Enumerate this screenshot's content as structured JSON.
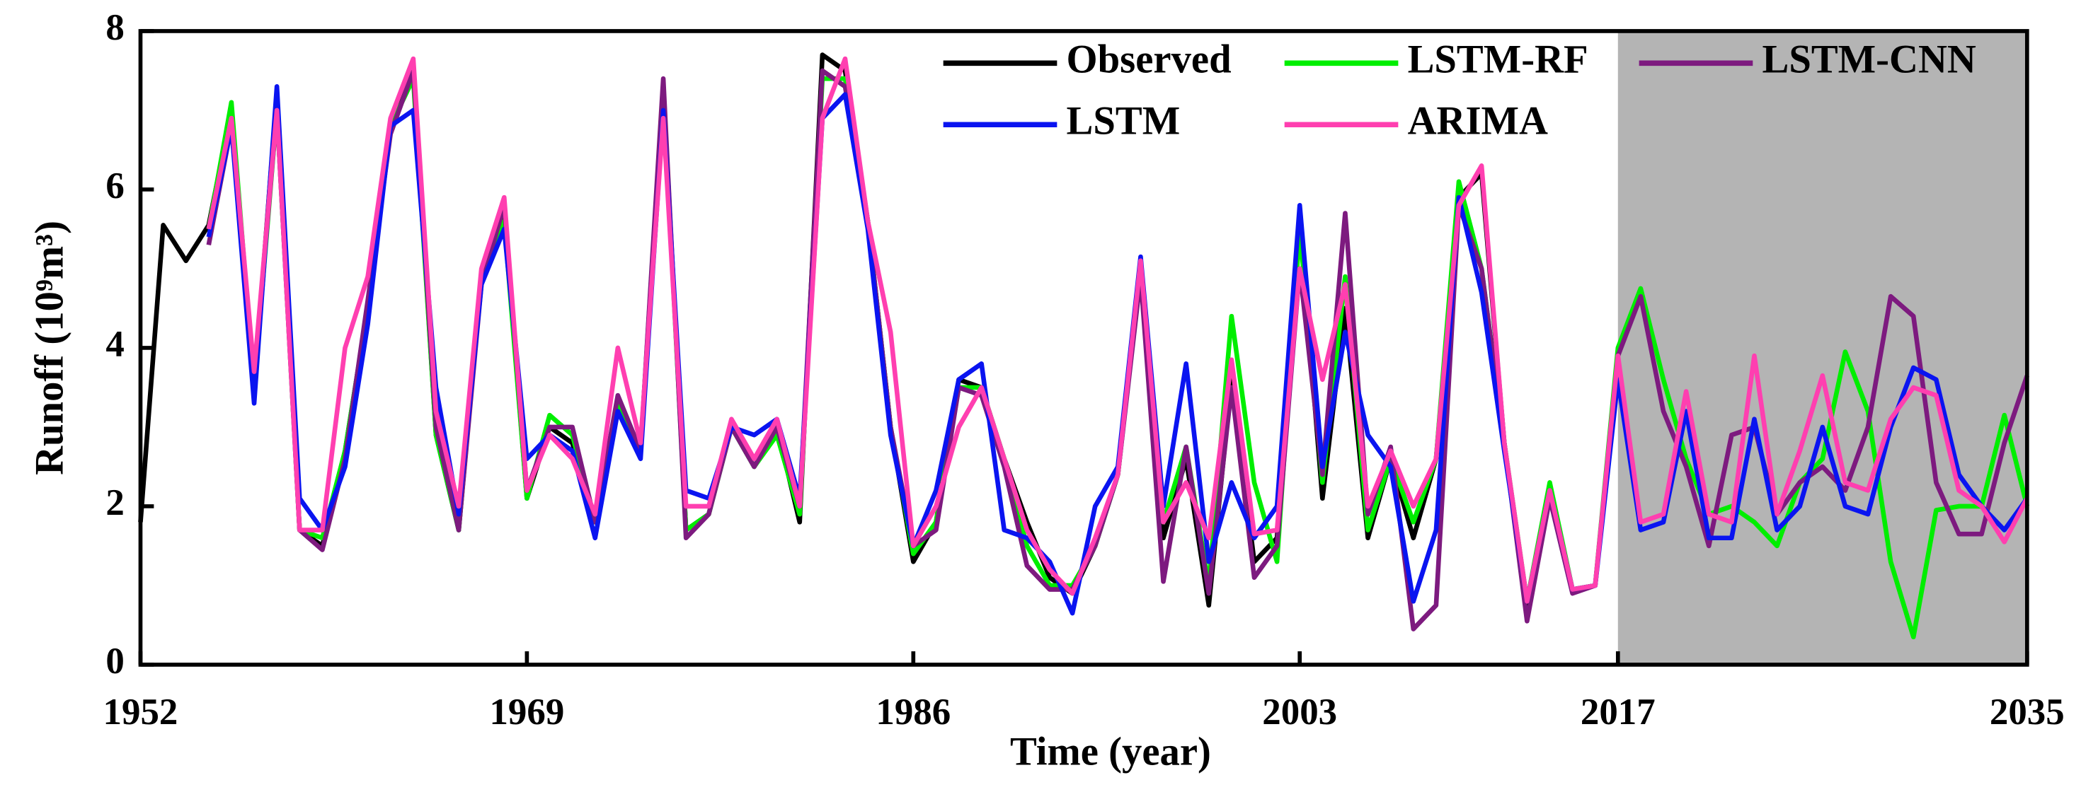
{
  "chart_data": {
    "type": "line",
    "xlabel": "Time (year)",
    "ylabel": "Runoff (10⁹m³)",
    "x": [
      1952,
      1953,
      1954,
      1955,
      1956,
      1957,
      1958,
      1959,
      1960,
      1961,
      1962,
      1963,
      1964,
      1965,
      1966,
      1967,
      1968,
      1969,
      1970,
      1971,
      1972,
      1973,
      1974,
      1975,
      1976,
      1977,
      1978,
      1979,
      1980,
      1981,
      1982,
      1983,
      1984,
      1985,
      1986,
      1987,
      1988,
      1989,
      1990,
      1991,
      1992,
      1993,
      1994,
      1995,
      1996,
      1997,
      1998,
      1999,
      2000,
      2001,
      2002,
      2003,
      2004,
      2005,
      2006,
      2007,
      2008,
      2009,
      2010,
      2011,
      2012,
      2013,
      2014,
      2015,
      2016,
      2017,
      2018,
      2019,
      2020,
      2021,
      2022,
      2023,
      2024,
      2025,
      2026,
      2027,
      2028,
      2029,
      2030,
      2031,
      2032,
      2033,
      2034,
      2035
    ],
    "series": [
      {
        "name": "Observed",
        "color": "#000000",
        "values": [
          1.8,
          5.55,
          5.1,
          5.55,
          7.0,
          3.5,
          7.2,
          1.7,
          1.5,
          2.7,
          4.5,
          6.8,
          7.5,
          2.9,
          1.7,
          4.9,
          5.7,
          2.1,
          3.0,
          2.8,
          1.8,
          3.3,
          2.7,
          7.3,
          1.7,
          1.9,
          3.0,
          2.5,
          3.0,
          1.8,
          7.7,
          7.5,
          5.6,
          3.0,
          1.3,
          1.8,
          3.6,
          3.5,
          2.6,
          1.8,
          1.1,
          0.9,
          1.5,
          2.4,
          5.0,
          1.6,
          2.6,
          0.75,
          3.6,
          1.3,
          1.6,
          5.6,
          2.1,
          4.5,
          1.6,
          2.6,
          1.6,
          2.6,
          5.9,
          6.2,
          2.8,
          0.7,
          2.2,
          0.95,
          1.0,
          null,
          null,
          null,
          null,
          null,
          null,
          null,
          null,
          null,
          null,
          null,
          null,
          null,
          null,
          null,
          null,
          null,
          null,
          null
        ]
      },
      {
        "name": "LSTM-RF",
        "color": "#00ee00",
        "values": [
          null,
          null,
          null,
          5.5,
          7.1,
          3.5,
          7.0,
          1.7,
          1.6,
          2.7,
          4.5,
          6.8,
          7.4,
          2.9,
          1.7,
          4.9,
          5.6,
          2.1,
          3.15,
          2.9,
          1.8,
          3.3,
          2.7,
          7.2,
          1.7,
          1.9,
          3.0,
          2.5,
          2.9,
          1.9,
          7.4,
          7.4,
          5.6,
          3.0,
          1.4,
          1.8,
          3.5,
          3.5,
          2.6,
          1.5,
          1.0,
          1.0,
          1.5,
          2.4,
          5.0,
          1.8,
          2.75,
          1.0,
          4.4,
          2.3,
          1.3,
          5.5,
          2.3,
          4.9,
          1.7,
          2.6,
          1.8,
          2.6,
          6.1,
          5.0,
          2.8,
          0.8,
          2.3,
          0.95,
          1.0,
          4.0,
          4.75,
          3.6,
          2.6,
          1.9,
          2.0,
          1.8,
          1.5,
          2.3,
          2.6,
          3.95,
          3.2,
          1.3,
          0.35,
          1.95,
          2.0,
          2.0,
          3.15,
          2.0
        ]
      },
      {
        "name": "LSTM-CNN",
        "color": "#7d1a7f",
        "values": [
          null,
          null,
          null,
          5.3,
          6.8,
          3.6,
          7.0,
          1.7,
          1.45,
          2.6,
          4.6,
          6.7,
          7.5,
          3.0,
          1.7,
          4.8,
          5.8,
          2.2,
          3.0,
          3.0,
          1.8,
          3.4,
          2.7,
          7.4,
          1.6,
          1.9,
          3.0,
          2.5,
          3.0,
          2.0,
          7.5,
          7.3,
          5.6,
          3.0,
          1.5,
          1.7,
          3.5,
          3.4,
          2.5,
          1.25,
          0.95,
          0.95,
          1.5,
          2.4,
          4.9,
          1.05,
          2.75,
          0.9,
          3.5,
          1.1,
          1.5,
          5.0,
          2.4,
          5.7,
          1.9,
          2.75,
          0.45,
          0.75,
          5.8,
          5.0,
          2.8,
          0.55,
          2.1,
          0.9,
          1.0,
          3.9,
          4.65,
          3.2,
          2.5,
          1.5,
          2.9,
          3.0,
          1.9,
          2.3,
          2.5,
          2.2,
          3.0,
          4.65,
          4.4,
          2.3,
          1.65,
          1.65,
          2.8,
          3.65
        ]
      },
      {
        "name": "LSTM",
        "color": "#0a14f0",
        "values": [
          null,
          null,
          null,
          5.4,
          6.8,
          3.3,
          7.3,
          2.1,
          1.7,
          2.5,
          4.3,
          6.8,
          7.0,
          3.5,
          1.9,
          4.8,
          5.5,
          2.6,
          2.9,
          2.7,
          1.6,
          3.2,
          2.6,
          7.0,
          2.2,
          2.1,
          3.0,
          2.9,
          3.1,
          2.1,
          6.9,
          7.2,
          5.5,
          2.9,
          1.5,
          2.2,
          3.6,
          3.8,
          1.7,
          1.6,
          1.3,
          0.65,
          2.0,
          2.5,
          5.15,
          2.0,
          3.8,
          1.3,
          2.3,
          1.6,
          2.0,
          5.8,
          2.5,
          4.2,
          2.9,
          2.5,
          0.8,
          1.7,
          5.9,
          4.7,
          2.7,
          0.8,
          2.2,
          0.95,
          1.0,
          3.6,
          1.7,
          1.8,
          3.2,
          1.6,
          1.6,
          3.1,
          1.7,
          2.0,
          3.0,
          2.0,
          1.9,
          3.0,
          3.75,
          3.6,
          2.4,
          2.0,
          1.7,
          2.1
        ]
      },
      {
        "name": "ARIMA",
        "color": "#ff3fb0",
        "values": [
          null,
          null,
          null,
          5.5,
          6.9,
          3.7,
          7.0,
          1.7,
          1.7,
          4.0,
          4.9,
          6.9,
          7.65,
          3.2,
          2.0,
          5.0,
          5.9,
          2.2,
          2.9,
          2.6,
          1.9,
          4.0,
          2.8,
          6.9,
          2.0,
          2.0,
          3.1,
          2.6,
          3.1,
          2.0,
          6.9,
          7.65,
          5.6,
          4.2,
          1.5,
          2.0,
          3.0,
          3.5,
          2.6,
          1.7,
          1.2,
          0.9,
          1.6,
          2.4,
          5.1,
          1.8,
          2.3,
          1.6,
          3.85,
          1.65,
          1.7,
          5.0,
          3.6,
          4.8,
          2.0,
          2.7,
          2.0,
          2.6,
          5.8,
          6.3,
          2.8,
          0.8,
          2.2,
          0.95,
          1.0,
          3.9,
          1.8,
          1.9,
          3.45,
          1.9,
          1.8,
          3.9,
          1.9,
          2.7,
          3.65,
          2.3,
          2.2,
          3.1,
          3.5,
          3.4,
          2.2,
          2.0,
          1.55,
          2.1
        ]
      }
    ],
    "xlim": [
      1952,
      2035
    ],
    "xticks": [
      1952,
      1969,
      1986,
      2003,
      2017,
      2035
    ],
    "ylim": [
      0,
      8
    ],
    "yticks": [
      0,
      2,
      4,
      6,
      8
    ],
    "shade": [
      2017,
      2035
    ],
    "shade_color": "#b4b4b4",
    "legend": "top-right",
    "grid": false
  }
}
